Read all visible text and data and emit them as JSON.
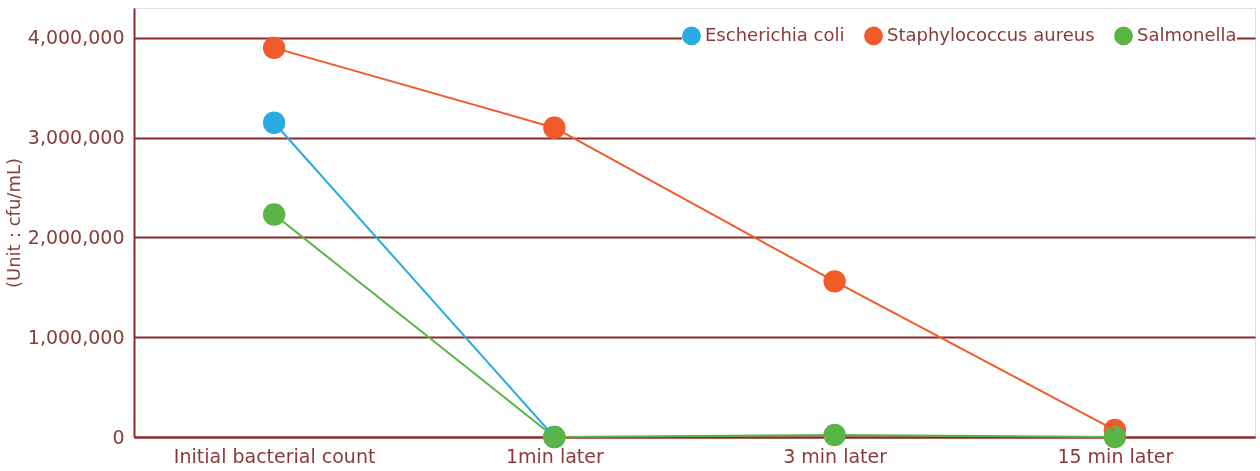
{
  "chart_data": {
    "type": "line",
    "ylabel": "(Unit：cfu/mL)",
    "categories": [
      "Initial bacterial count",
      "1min later",
      "3 min later",
      "15 min later"
    ],
    "series": [
      {
        "name": "Escherichia coli",
        "color": "#29abe2",
        "values": [
          3150000,
          0,
          null,
          null
        ]
      },
      {
        "name": "Staphylococcus aureus",
        "color": "#f15a29",
        "values": [
          3900000,
          3100000,
          1560000,
          70000
        ]
      },
      {
        "name": "Salmonella",
        "color": "#5ab546",
        "values": [
          2230000,
          0,
          20000,
          0
        ]
      }
    ],
    "ylim": [
      0,
      4300000
    ],
    "yticks": [
      0,
      {
        "value": 1000000,
        "label": "1,000,000"
      },
      {
        "value": 2000000,
        "label": "2,000,000"
      },
      {
        "value": 3000000,
        "label": "3,000,000"
      },
      {
        "value": 4000000,
        "label": "4,000,000"
      }
    ],
    "grid": "y",
    "legend": "top right",
    "marker": "circle",
    "line_style": "solid"
  }
}
